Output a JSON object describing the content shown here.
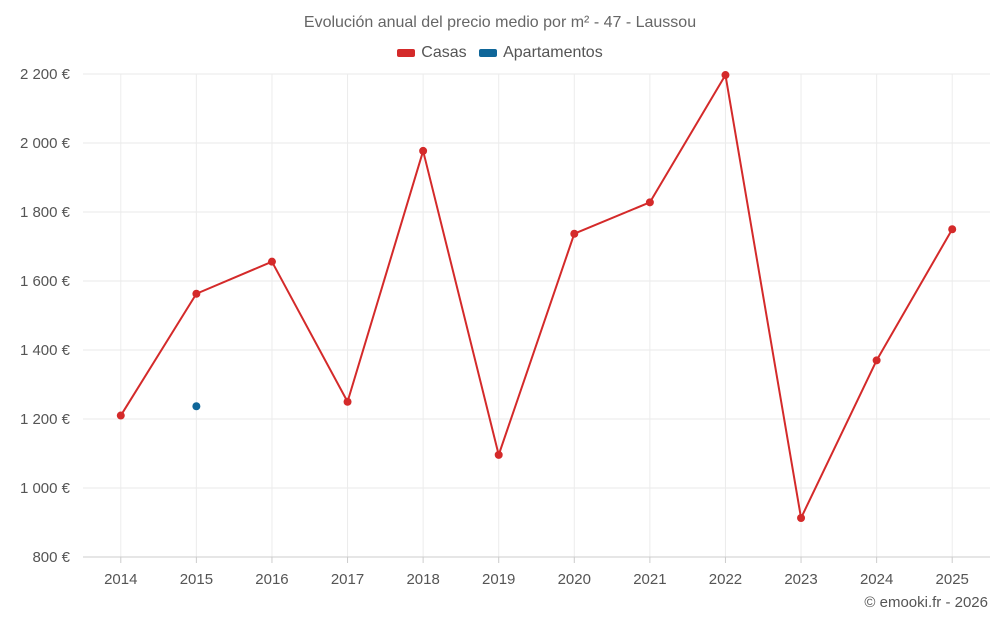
{
  "credit": "© emooki.fr - 2026",
  "chart_data": {
    "type": "line",
    "title": "Evolución anual del precio medio por m² - 47 - Laussou",
    "xlabel": "",
    "ylabel": "",
    "categories": [
      "2014",
      "2015",
      "2016",
      "2017",
      "2018",
      "2019",
      "2020",
      "2021",
      "2022",
      "2023",
      "2024",
      "2025"
    ],
    "ylim": [
      800,
      2200
    ],
    "yticks": [
      800,
      1000,
      1200,
      1400,
      1600,
      1800,
      2000,
      2200
    ],
    "ytick_labels": [
      "800 €",
      "1 000 €",
      "1 200 €",
      "1 400 €",
      "1 600 €",
      "1 800 €",
      "2 000 €",
      "2 200 €"
    ],
    "grid": true,
    "legend_position": "top-center",
    "series": [
      {
        "name": "Casas",
        "color": "#d42a2a",
        "values": [
          1210,
          1563,
          1656,
          1250,
          1977,
          1096,
          1737,
          1828,
          2197,
          913,
          1370,
          1750
        ]
      },
      {
        "name": "Apartamentos",
        "color": "#0f6699",
        "values": [
          null,
          1237,
          null,
          null,
          null,
          null,
          null,
          null,
          null,
          null,
          null,
          null
        ]
      }
    ]
  }
}
